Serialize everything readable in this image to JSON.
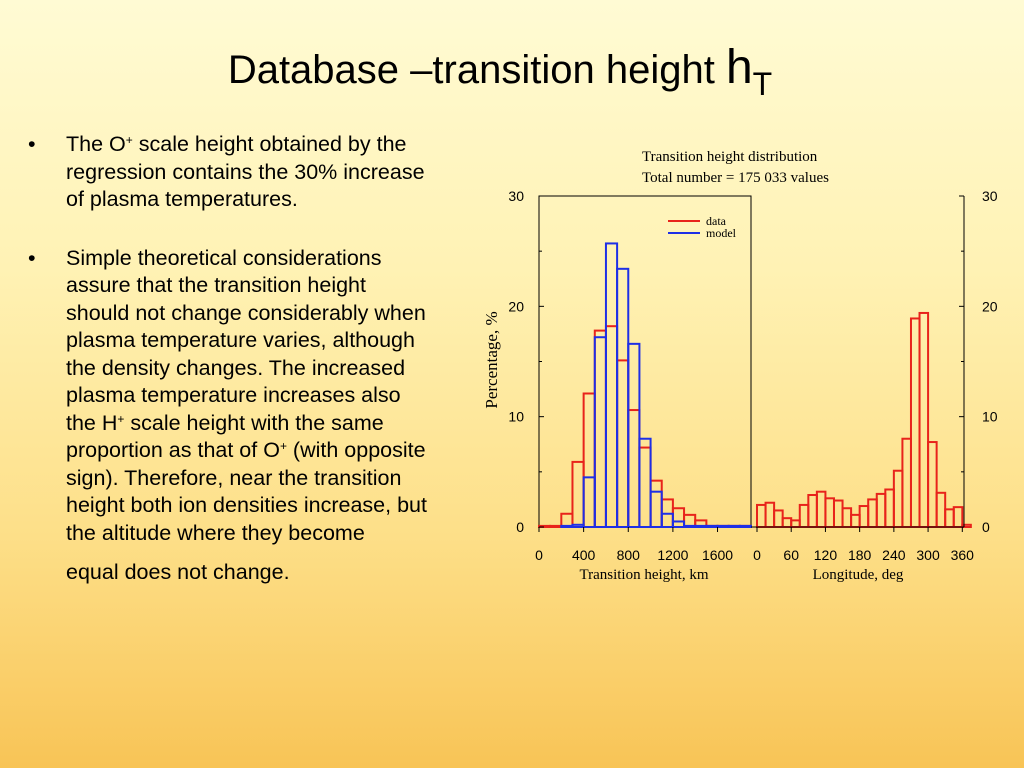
{
  "slide": {
    "title": "Database –transition height",
    "title_symbol": "h",
    "title_subscript": "T",
    "bullet1": {
      "part1": "The O",
      "sup1": "+",
      "part2": " scale height obtained by the regression contains the 30% increase of plasma temperatures."
    },
    "bullet2": {
      "part1": "Simple theoretical considerations assure that the transition height should not change considerably when plasma temperature varies, although the density changes. The increased plasma temperature increases also the H",
      "sup1": "+",
      "part2": " scale height with the same proportion as that of O",
      "sup2": "+",
      "part3": " (with opposite sign). Therefore, near the transition height both ion densities increase, but the altitude where they become",
      "last_line": "equal does not change."
    }
  },
  "chart_data": [
    {
      "type": "histogram",
      "title": "Transition height distribution",
      "subtitle": "Total number = 175 033 values",
      "xlabel": "Transition height, km",
      "ylabel": "Percentage, %",
      "xlim": [
        0,
        1900
      ],
      "ylim": [
        0,
        30
      ],
      "xticks": [
        0,
        400,
        800,
        1200,
        1600
      ],
      "yticks": [
        0,
        10,
        20,
        30
      ],
      "bin_width": 100,
      "bin_starts": [
        0,
        100,
        200,
        300,
        400,
        500,
        600,
        700,
        800,
        900,
        1000,
        1100,
        1200,
        1300,
        1400,
        1500,
        1600,
        1700,
        1800
      ],
      "legend_position": "top-right",
      "series": [
        {
          "name": "data",
          "color": "#e8231b",
          "values": [
            0.1,
            0.1,
            1.2,
            5.9,
            12.1,
            17.8,
            18.2,
            15.1,
            10.6,
            7.2,
            4.2,
            2.5,
            1.7,
            1.1,
            0.6,
            0.1,
            0.1,
            0.1,
            0.1
          ]
        },
        {
          "name": "model",
          "color": "#1e2fe6",
          "values": [
            0,
            0,
            0.1,
            0.2,
            4.5,
            17.2,
            25.7,
            23.4,
            16.6,
            8.0,
            3.2,
            1.2,
            0.5,
            0.1,
            0.1,
            0.1,
            0.1,
            0.1,
            0.1
          ]
        }
      ]
    },
    {
      "type": "histogram",
      "xlabel": "Longitude, deg",
      "xlim": [
        0,
        370
      ],
      "ylim": [
        0,
        30
      ],
      "xticks": [
        0,
        60,
        120,
        180,
        240,
        300,
        360
      ],
      "yticks": [
        0,
        10,
        20,
        30
      ],
      "bin_width": 15,
      "series": [
        {
          "name": "data",
          "color": "#e8231b",
          "values": [
            2.0,
            2.2,
            1.5,
            0.8,
            0.6,
            2.0,
            2.9,
            3.2,
            2.6,
            2.4,
            1.7,
            1.1,
            1.9,
            2.5,
            3.0,
            3.4,
            5.1,
            8.0,
            18.9,
            19.4,
            7.7,
            3.1,
            1.6,
            1.8,
            0.2
          ]
        }
      ]
    }
  ],
  "colors": {
    "data": "#e8231b",
    "model": "#1e2fe6"
  }
}
